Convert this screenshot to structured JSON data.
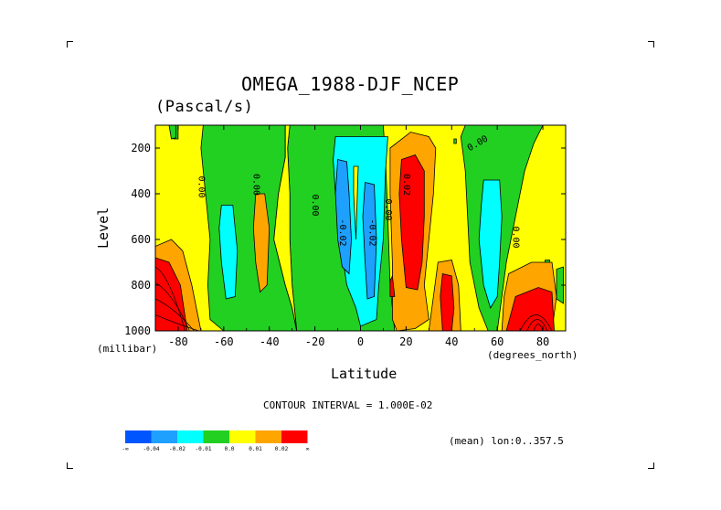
{
  "chart_data": {
    "type": "heatmap",
    "title": "OMEGA_1988-DJF_NCEP",
    "subtitle": "(Pascal/s)",
    "xlabel": "Latitude",
    "ylabel": "Level",
    "x_units": "(degrees_north)",
    "y_units": "(millibar)",
    "xlim": [
      -90,
      90
    ],
    "ylim": [
      1000,
      100
    ],
    "x_ticks": [
      "-80",
      "-60",
      "-40",
      "-20",
      "0",
      "20",
      "40",
      "60",
      "80"
    ],
    "x_tick_values": [
      -80,
      -60,
      -40,
      -20,
      0,
      20,
      40,
      60,
      80
    ],
    "y_ticks": [
      "200",
      "400",
      "600",
      "800",
      "1000"
    ],
    "y_tick_values": [
      200,
      400,
      600,
      800,
      1000
    ],
    "contour_interval_text": "CONTOUR INTERVAL = 1.000E-02",
    "mean_text": "(mean) lon:0..357.5",
    "contour_labels": [
      {
        "text": "0.00",
        "lat": -71,
        "lev": 370,
        "rot": 90
      },
      {
        "text": "0.00",
        "lat": -47,
        "lev": 360,
        "rot": 90
      },
      {
        "text": "0.00",
        "lat": -21,
        "lev": 450,
        "rot": 90
      },
      {
        "text": "-0.02",
        "lat": -9,
        "lev": 570,
        "rot": 90
      },
      {
        "text": "-0.02",
        "lat": 4,
        "lev": 570,
        "rot": 90
      },
      {
        "text": "0.00",
        "lat": 11,
        "lev": 470,
        "rot": 90
      },
      {
        "text": "0.02",
        "lat": 19,
        "lev": 360,
        "rot": 90
      },
      {
        "text": "0.00",
        "lat": 52,
        "lev": 190,
        "rot": -30
      },
      {
        "text": "0.00",
        "lat": 67,
        "lev": 590,
        "rot": 90
      }
    ],
    "colorbar": {
      "colors": [
        "#0055ff",
        "#1ea0ff",
        "#00ffff",
        "#22d022",
        "#ffff00",
        "#ffa500",
        "#ff0000"
      ],
      "labels": [
        "-∞",
        "-0.04",
        "-0.02",
        "-0.01",
        "0.0",
        "0.01",
        "0.02",
        "∞"
      ]
    },
    "field_regions": [
      {
        "level": "rise_moderate",
        "color": "#22d022",
        "lat_range": [
          -69,
          -33
        ],
        "lev_range": [
          130,
          1000
        ]
      },
      {
        "level": "rise_moderate",
        "color": "#22d022",
        "lat_range": [
          -33,
          10
        ],
        "lev_range": [
          130,
          1000
        ]
      },
      {
        "level": "rise_strong",
        "color": "#00ffff",
        "lat_range": [
          -11,
          11
        ],
        "lev_range": [
          130,
          980
        ]
      },
      {
        "level": "rise_max",
        "color": "#1ea0ff",
        "lat_range": [
          -10,
          -4
        ],
        "lev_range": [
          300,
          750
        ]
      },
      {
        "level": "sink_moderate",
        "color": "#ffa500",
        "lat_range": [
          14,
          31
        ],
        "lev_range": [
          140,
          960
        ]
      },
      {
        "level": "sink_max",
        "color": "#ff0000",
        "lat_range": [
          18,
          28
        ],
        "lev_range": [
          250,
          820
        ]
      },
      {
        "level": "rise_strong",
        "color": "#00ffff",
        "lat_range": [
          53,
          62
        ],
        "lev_range": [
          340,
          900
        ]
      },
      {
        "level": "sink_max",
        "color": "#ff0000",
        "lat_range": [
          -90,
          -76
        ],
        "lev_range": [
          680,
          1000
        ]
      }
    ]
  }
}
